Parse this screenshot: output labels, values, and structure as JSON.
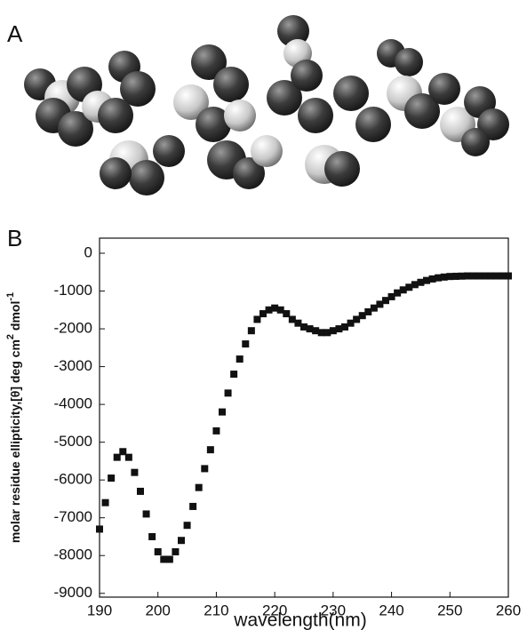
{
  "panel_labels": [
    "A",
    "B"
  ],
  "chart_data": {
    "type": "scatter",
    "xlabel": "wavelength(nm)",
    "ylabel": [
      "molar residue  ellipticity,[θ] deg cm",
      "2",
      " dmol",
      "-1"
    ],
    "x": [
      190,
      191,
      192,
      193,
      194,
      195,
      196,
      197,
      198,
      199,
      200,
      201,
      202,
      203,
      204,
      205,
      206,
      207,
      208,
      209,
      210,
      211,
      212,
      213,
      214,
      215,
      216,
      217,
      218,
      219,
      220,
      221,
      222,
      223,
      224,
      225,
      226,
      227,
      228,
      229,
      230,
      231,
      232,
      233,
      234,
      235,
      236,
      237,
      238,
      239,
      240,
      241,
      242,
      243,
      244,
      245,
      246,
      247,
      248,
      249,
      250,
      251,
      252,
      253,
      254,
      255,
      256,
      257,
      258,
      259,
      260
    ],
    "values": [
      -7300,
      -6600,
      -5950,
      -5400,
      -5250,
      -5400,
      -5800,
      -6300,
      -6900,
      -7500,
      -7900,
      -8100,
      -8100,
      -7900,
      -7600,
      -7200,
      -6700,
      -6200,
      -5700,
      -5200,
      -4700,
      -4200,
      -3700,
      -3200,
      -2800,
      -2400,
      -2050,
      -1750,
      -1600,
      -1500,
      -1450,
      -1500,
      -1600,
      -1750,
      -1850,
      -1950,
      -2000,
      -2050,
      -2100,
      -2100,
      -2050,
      -2000,
      -1950,
      -1850,
      -1750,
      -1650,
      -1550,
      -1450,
      -1350,
      -1250,
      -1150,
      -1050,
      -970,
      -900,
      -830,
      -770,
      -720,
      -680,
      -650,
      -630,
      -615,
      -610,
      -605,
      -600,
      -600,
      -600,
      -600,
      -600,
      -600,
      -600,
      -600
    ],
    "color": "#111111",
    "xlim": [
      190,
      260
    ],
    "xticks": [
      190,
      200,
      210,
      220,
      230,
      240,
      250,
      260
    ],
    "ylim": [
      -9100,
      400
    ],
    "yticks": [
      0,
      -1000,
      -2000,
      -3000,
      -4000,
      -5000,
      -6000,
      -7000,
      -8000,
      -9000
    ]
  }
}
